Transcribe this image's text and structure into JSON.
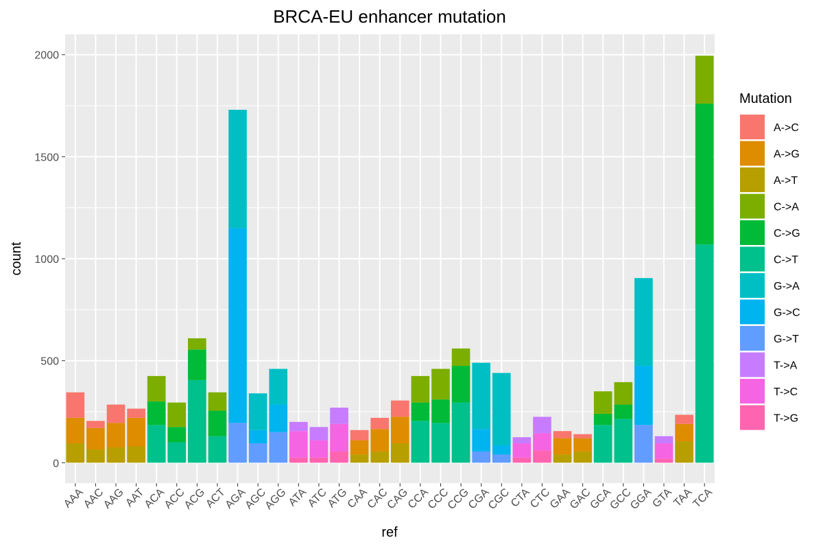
{
  "chart_data": {
    "type": "bar",
    "stacked": true,
    "title": "BRCA-EU enhancer mutation",
    "xlabel": "ref",
    "ylabel": "count",
    "ylim": [
      -100,
      2100
    ],
    "yticks": [
      0,
      500,
      1000,
      1500,
      2000
    ],
    "grid": true,
    "legend": {
      "title": "Mutation",
      "position": "right"
    },
    "categories": [
      "AAA",
      "AAC",
      "AAG",
      "AAT",
      "ACA",
      "ACC",
      "ACG",
      "ACT",
      "AGA",
      "AGC",
      "AGG",
      "ATA",
      "ATC",
      "ATG",
      "CAA",
      "CAC",
      "CAG",
      "CCA",
      "CCC",
      "CCG",
      "CGA",
      "CGC",
      "CTA",
      "CTC",
      "GAA",
      "GAC",
      "GCA",
      "GCC",
      "GGA",
      "GTA",
      "TAA",
      "TCA"
    ],
    "series": [
      {
        "name": "A->C",
        "color": "#F8766D",
        "values": [
          125,
          35,
          90,
          45,
          0,
          0,
          0,
          0,
          0,
          0,
          0,
          0,
          0,
          0,
          50,
          55,
          80,
          0,
          0,
          0,
          0,
          0,
          0,
          0,
          35,
          20,
          0,
          0,
          0,
          0,
          45,
          0
        ]
      },
      {
        "name": "A->G",
        "color": "#DE8C00",
        "values": [
          125,
          105,
          120,
          140,
          0,
          0,
          0,
          0,
          0,
          0,
          0,
          0,
          0,
          0,
          70,
          110,
          130,
          0,
          0,
          0,
          0,
          0,
          0,
          0,
          80,
          65,
          0,
          0,
          0,
          0,
          85,
          0
        ]
      },
      {
        "name": "A->T",
        "color": "#B79F00",
        "values": [
          95,
          65,
          75,
          80,
          0,
          0,
          0,
          0,
          0,
          0,
          0,
          0,
          0,
          0,
          40,
          55,
          95,
          0,
          0,
          0,
          0,
          0,
          0,
          0,
          40,
          55,
          0,
          0,
          0,
          0,
          105,
          0
        ]
      },
      {
        "name": "C->A",
        "color": "#7CAE00",
        "values": [
          0,
          0,
          0,
          0,
          125,
          120,
          55,
          90,
          0,
          0,
          0,
          0,
          0,
          0,
          0,
          0,
          0,
          130,
          150,
          85,
          0,
          0,
          0,
          0,
          0,
          0,
          110,
          110,
          0,
          0,
          0,
          235
        ]
      },
      {
        "name": "C->G",
        "color": "#00BA38",
        "values": [
          0,
          0,
          0,
          0,
          115,
          75,
          150,
          125,
          0,
          0,
          0,
          0,
          0,
          0,
          0,
          0,
          0,
          90,
          115,
          180,
          0,
          0,
          0,
          0,
          0,
          0,
          55,
          70,
          0,
          0,
          0,
          690
        ]
      },
      {
        "name": "C->T",
        "color": "#00C08B",
        "values": [
          0,
          0,
          0,
          0,
          185,
          100,
          405,
          130,
          0,
          0,
          0,
          0,
          0,
          0,
          0,
          0,
          0,
          205,
          195,
          295,
          0,
          0,
          0,
          0,
          0,
          0,
          185,
          215,
          0,
          0,
          0,
          1070
        ]
      },
      {
        "name": "G->A",
        "color": "#00BFC4",
        "values": [
          0,
          0,
          0,
          0,
          0,
          0,
          0,
          0,
          580,
          180,
          175,
          0,
          0,
          0,
          0,
          0,
          0,
          0,
          0,
          0,
          325,
          355,
          0,
          0,
          0,
          0,
          0,
          0,
          430,
          0,
          0,
          0
        ]
      },
      {
        "name": "G->C",
        "color": "#00B4F0",
        "values": [
          0,
          0,
          0,
          0,
          0,
          0,
          0,
          0,
          955,
          65,
          135,
          0,
          0,
          0,
          0,
          0,
          0,
          0,
          0,
          0,
          110,
          45,
          0,
          0,
          0,
          0,
          0,
          0,
          290,
          0,
          0,
          0
        ]
      },
      {
        "name": "G->T",
        "color": "#619CFF",
        "values": [
          0,
          0,
          0,
          0,
          0,
          0,
          0,
          0,
          195,
          95,
          150,
          0,
          0,
          0,
          0,
          0,
          0,
          0,
          0,
          0,
          55,
          40,
          0,
          0,
          0,
          0,
          0,
          0,
          185,
          0,
          0,
          0
        ]
      },
      {
        "name": "T->A",
        "color": "#C77CFF",
        "values": [
          0,
          0,
          0,
          0,
          0,
          0,
          0,
          0,
          0,
          0,
          0,
          45,
          65,
          80,
          0,
          0,
          0,
          0,
          0,
          0,
          0,
          0,
          30,
          80,
          0,
          0,
          0,
          0,
          0,
          35,
          0,
          0
        ]
      },
      {
        "name": "T->C",
        "color": "#F564E3",
        "values": [
          0,
          0,
          0,
          0,
          0,
          0,
          0,
          0,
          0,
          0,
          0,
          130,
          85,
          135,
          0,
          0,
          0,
          0,
          0,
          0,
          0,
          0,
          70,
          85,
          0,
          0,
          0,
          0,
          0,
          75,
          0,
          0
        ]
      },
      {
        "name": "T->G",
        "color": "#FF64B0",
        "values": [
          0,
          0,
          0,
          0,
          0,
          0,
          0,
          0,
          0,
          0,
          0,
          25,
          25,
          55,
          0,
          0,
          0,
          0,
          0,
          0,
          0,
          0,
          25,
          60,
          0,
          0,
          0,
          0,
          0,
          20,
          0,
          0
        ]
      }
    ]
  }
}
